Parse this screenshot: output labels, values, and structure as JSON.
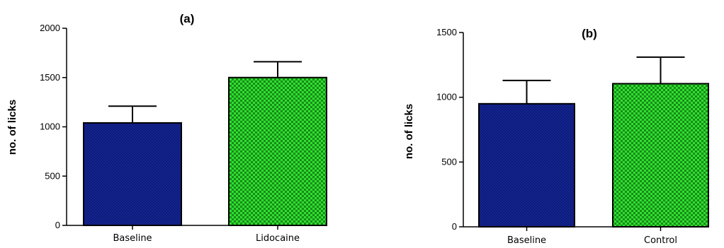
{
  "chart_data": [
    {
      "type": "bar",
      "title": "(a)",
      "xlabel": "",
      "ylabel": "no. of licks",
      "ylim": [
        0,
        2000
      ],
      "yticks": [
        0,
        500,
        1000,
        1500,
        2000
      ],
      "categories": [
        "Baseline",
        "Lidocaine"
      ],
      "values": [
        1040,
        1500
      ],
      "errors": [
        170,
        160
      ],
      "error_bars": "upper",
      "grid": false,
      "bar_styles": [
        {
          "fill": "#0d1a7a",
          "pattern": "solid"
        },
        {
          "fill": "#2fe02f",
          "pattern": "checker"
        }
      ]
    },
    {
      "type": "bar",
      "title": "(b)",
      "xlabel": "",
      "ylabel": "no. of licks",
      "ylim": [
        0,
        1500
      ],
      "yticks": [
        0,
        500,
        1000,
        1500
      ],
      "categories": [
        "Baseline",
        "Control"
      ],
      "values": [
        950,
        1105
      ],
      "errors": [
        180,
        205
      ],
      "error_bars": "upper",
      "grid": false,
      "bar_styles": [
        {
          "fill": "#0d1a7a",
          "pattern": "solid"
        },
        {
          "fill": "#2fe02f",
          "pattern": "checker"
        }
      ]
    }
  ]
}
